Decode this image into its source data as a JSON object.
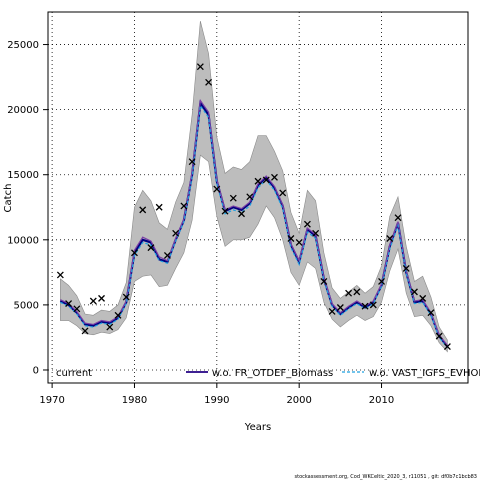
{
  "chart_data": {
    "type": "line",
    "xlabel": "Years",
    "ylabel": "Catch",
    "xlim": [
      1969.5,
      2470
    ],
    "ylim": [
      -1000,
      27500
    ],
    "x_ticks": [
      1970,
      1980,
      1990,
      2000,
      2010
    ],
    "y_ticks": [
      0,
      5000,
      10000,
      15000,
      20000,
      25000
    ],
    "x_tick_labels": [
      "1970",
      "1980",
      "1990",
      "2000",
      "2010"
    ],
    "y_tick_labels": [
      "0",
      "5000",
      "10000",
      "15000",
      "20000",
      "25000"
    ],
    "grid": true,
    "legend_position": "bottom",
    "footer": "stockassessment.org, Cod_WKCeltic_2020_3, r11051 , git: df0b7c1bcb83",
    "observed": {
      "marker": "x",
      "x": [
        1971,
        1972,
        1973,
        1974,
        1975,
        1976,
        1977,
        1978,
        1979,
        1980,
        1981,
        1982,
        1983,
        1984,
        1985,
        1986,
        1987,
        1988,
        1989,
        1990,
        1991,
        1992,
        1993,
        1994,
        1995,
        1996,
        1997,
        1998,
        1999,
        2000,
        2001,
        2002,
        2003,
        2004,
        2005,
        2006,
        2007,
        2008,
        2009,
        2010,
        2011,
        2012,
        2013,
        2014,
        2015,
        2016,
        2017,
        2018
      ],
      "values": [
        7300,
        5100,
        4700,
        3000,
        5300,
        5500,
        3300,
        4200,
        5600,
        9000,
        12300,
        9400,
        12500,
        8800,
        10500,
        12600,
        16000,
        23300,
        22100,
        13900,
        12200,
        13200,
        12000,
        13300,
        14500,
        14600,
        14800,
        13600,
        10100,
        9800,
        11200,
        10500,
        6800,
        4500,
        4800,
        5900,
        6000,
        4900,
        5000,
        6800,
        10100,
        11700,
        7800,
        6000,
        5500,
        4400,
        2600,
        1800
      ]
    },
    "series": [
      {
        "name": "current",
        "x": [
          1971,
          1972,
          1973,
          1974,
          1975,
          1976,
          1977,
          1978,
          1979,
          1980,
          1981,
          1982,
          1983,
          1984,
          1985,
          1986,
          1987,
          1988,
          1989,
          1990,
          1991,
          1992,
          1993,
          1994,
          1995,
          1996,
          1997,
          1998,
          1999,
          2000,
          2001,
          2002,
          2003,
          2004,
          2005,
          2006,
          2007,
          2008,
          2009,
          2010,
          2011,
          2012,
          2013,
          2014,
          2015,
          2016,
          2017,
          2018
        ],
        "values": [
          5300,
          5000,
          4400,
          3500,
          3400,
          3700,
          3600,
          4000,
          5200,
          9000,
          10000,
          9800,
          8500,
          8300,
          10000,
          11500,
          15000,
          20500,
          19600,
          14500,
          12200,
          12500,
          12300,
          12800,
          14200,
          14800,
          14000,
          12600,
          9600,
          8300,
          10800,
          10300,
          7000,
          5000,
          4300,
          4800,
          5200,
          4800,
          5200,
          6500,
          9500,
          11300,
          7500,
          5200,
          5300,
          4300,
          2600,
          1800
        ],
        "lower": [
          3800,
          3800,
          3400,
          2800,
          2700,
          2900,
          2800,
          3100,
          4000,
          6800,
          7200,
          7300,
          6400,
          6500,
          7800,
          9000,
          11500,
          16500,
          16000,
          11800,
          9500,
          10000,
          10000,
          10200,
          11200,
          12600,
          11700,
          10000,
          7500,
          6500,
          8300,
          7800,
          5200,
          3900,
          3300,
          3800,
          4200,
          3800,
          4100,
          5200,
          7600,
          9300,
          5900,
          4100,
          4200,
          3400,
          2100,
          1400
        ],
        "upper": [
          7000,
          6500,
          5700,
          4300,
          4200,
          4600,
          4500,
          5000,
          6700,
          12500,
          13800,
          13000,
          11300,
          10800,
          12900,
          14400,
          19600,
          26800,
          24300,
          17900,
          15100,
          15600,
          15400,
          16000,
          18000,
          18000,
          16800,
          15300,
          12100,
          10500,
          13800,
          13000,
          9000,
          6300,
          5500,
          6000,
          6500,
          5900,
          6400,
          8000,
          11800,
          13300,
          9500,
          6800,
          7200,
          5600,
          3300,
          2300
        ],
        "color": "#000080"
      },
      {
        "name": "w.o. FR_OTDEF_Biomass",
        "x": [
          1971,
          1972,
          1973,
          1974,
          1975,
          1976,
          1977,
          1978,
          1979,
          1980,
          1981,
          1982,
          1983,
          1984,
          1985,
          1986,
          1987,
          1988,
          1989,
          1990,
          1991,
          1992,
          1993,
          1994,
          1995,
          1996,
          1997,
          1998,
          1999,
          2000,
          2001,
          2002,
          2003,
          2004,
          2005,
          2006,
          2007,
          2008,
          2009,
          2010,
          2011,
          2012,
          2013,
          2014,
          2015,
          2016,
          2017,
          2018
        ],
        "values": [
          5400,
          5100,
          4500,
          3600,
          3500,
          3800,
          3700,
          4100,
          5300,
          9200,
          10200,
          9900,
          8700,
          8400,
          10100,
          11600,
          15200,
          20700,
          19800,
          14600,
          12300,
          12600,
          12400,
          12900,
          14300,
          14900,
          14100,
          12700,
          9700,
          8400,
          10900,
          10400,
          7100,
          5100,
          4400,
          4900,
          5300,
          4900,
          5300,
          6600,
          9600,
          11400,
          7600,
          5300,
          5400,
          4400,
          2700,
          1900
        ],
        "color": "#7b3fa6"
      },
      {
        "name": "w.o. VAST_IGFS_EVHOE",
        "x": [
          1971,
          1972,
          1973,
          1974,
          1975,
          1976,
          1977,
          1978,
          1979,
          1980,
          1981,
          1982,
          1983,
          1984,
          1985,
          1986,
          1987,
          1988,
          1989,
          1990,
          1991,
          1992,
          1993,
          1994,
          1995,
          1996,
          1997,
          1998,
          1999,
          2000,
          2001,
          2002,
          2003,
          2004,
          2005,
          2006,
          2007,
          2008,
          2009,
          2010,
          2011,
          2012,
          2013,
          2014,
          2015,
          2016,
          2017,
          2018
        ],
        "values": [
          5200,
          4900,
          4300,
          3400,
          3300,
          3600,
          3500,
          3900,
          5100,
          8800,
          9800,
          9600,
          8400,
          8200,
          9900,
          11400,
          14800,
          20300,
          19400,
          14300,
          12000,
          12300,
          12100,
          12600,
          14000,
          14600,
          13800,
          12400,
          9400,
          8100,
          10600,
          10100,
          6900,
          4900,
          4200,
          4700,
          5100,
          4700,
          5100,
          6400,
          9300,
          11100,
          7400,
          5100,
          5200,
          4200,
          2500,
          1700
        ],
        "color": "#1fa0e0",
        "dashed": true
      }
    ]
  }
}
